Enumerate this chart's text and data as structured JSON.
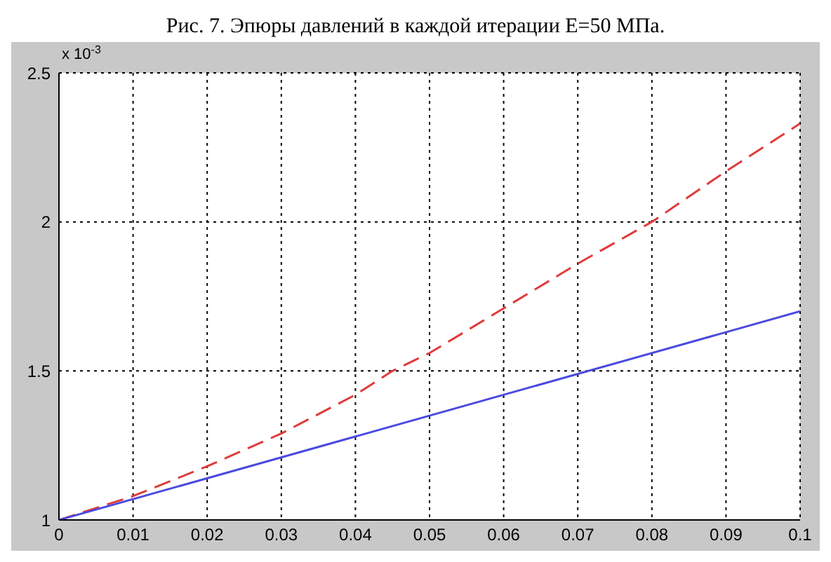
{
  "chart_data": {
    "type": "line",
    "title": "Рис. 7. Эпюры давлений в каждой итерации E=50 МПа.",
    "annotations": [
      "x 10$^{-3}$"
    ],
    "xlim": [
      0,
      0.1
    ],
    "xticks": [
      0,
      0.01,
      0.02,
      0.03,
      0.04,
      0.05,
      0.06,
      0.07,
      0.08,
      0.09,
      0.1
    ],
    "ylim": [
      1,
      2.5
    ],
    "yticks": [
      1,
      1.5,
      2,
      2.5
    ],
    "grid": true,
    "legend": false,
    "series": [
      {
        "color": "#e03a3a",
        "line_style": "dashed",
        "x": [
          0,
          0.01,
          0.02,
          0.03,
          0.04,
          0.045,
          0.05,
          0.06,
          0.07,
          0.08,
          0.09,
          0.1
        ],
        "values": [
          1,
          1.08,
          1.18,
          1.29,
          1.42,
          1.5,
          1.56,
          1.71,
          1.86,
          2.0,
          2.17,
          2.33
        ]
      },
      {
        "color": "#4a4ae0",
        "line_style": "solid",
        "x": [
          0,
          0.1
        ],
        "values": [
          1,
          1.7
        ]
      }
    ]
  }
}
